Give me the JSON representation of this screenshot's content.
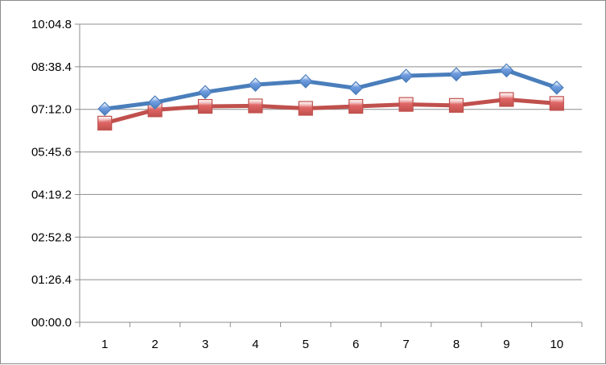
{
  "chart_data": {
    "type": "line",
    "x": [
      1,
      2,
      3,
      4,
      5,
      6,
      7,
      8,
      9,
      10
    ],
    "y_unit": "seconds",
    "ylim": [
      0,
      604.8
    ],
    "y_tick_values": [
      0,
      86.4,
      172.8,
      259.2,
      345.6,
      432,
      518.4,
      604.8
    ],
    "y_tick_labels": [
      "00:00.0",
      "01:26.4",
      "02:52.8",
      "04:19.2",
      "05:45.6",
      "07:12.0",
      "08:38.4",
      "10:04.8"
    ],
    "x_tick_labels": [
      "1",
      "2",
      "3",
      "4",
      "5",
      "6",
      "7",
      "8",
      "9",
      "10"
    ],
    "grid": true,
    "legend": "none",
    "series": [
      {
        "marker": "diamond",
        "color": "#4a7ebb",
        "marker_color": "#6e9be0",
        "values": [
          433,
          446,
          467,
          482,
          489,
          475,
          500,
          503,
          511,
          476
        ]
      },
      {
        "marker": "square",
        "color": "#c0504d",
        "marker_color": "#e06666",
        "values": [
          404,
          431,
          438,
          439,
          434,
          438,
          442,
          440,
          452,
          444
        ]
      }
    ]
  }
}
